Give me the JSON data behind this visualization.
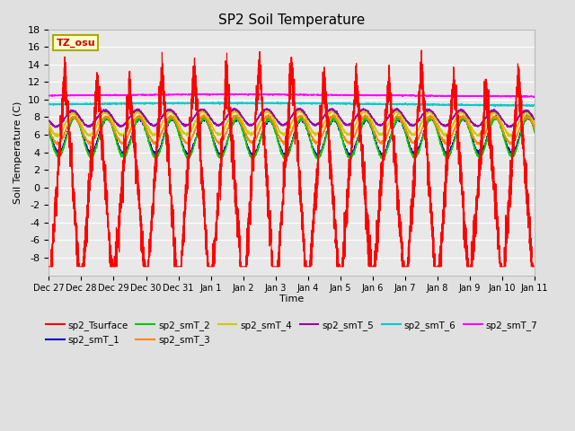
{
  "title": "SP2 Soil Temperature",
  "ylabel": "Soil Temperature (C)",
  "xlabel": "Time",
  "ylim": [
    -10,
    18
  ],
  "yticks": [
    -8,
    -6,
    -4,
    -2,
    0,
    2,
    4,
    6,
    8,
    10,
    12,
    14,
    16,
    18
  ],
  "xtick_labels": [
    "Dec 27",
    "Dec 28",
    "Dec 29",
    "Dec 30",
    "Dec 31",
    "Jan 1",
    "Jan 2",
    "Jan 3",
    "Jan 4",
    "Jan 5",
    "Jan 6",
    "Jan 7",
    "Jan 8",
    "Jan 9",
    "Jan 10",
    "Jan 11"
  ],
  "xtick_positions": [
    0,
    1,
    2,
    3,
    4,
    5,
    6,
    7,
    8,
    9,
    10,
    11,
    12,
    13,
    14,
    15
  ],
  "series_colors": {
    "sp2_Tsurface": "#ff0000",
    "sp2_smT_1": "#0000cc",
    "sp2_smT_2": "#00cc00",
    "sp2_smT_3": "#ff8800",
    "sp2_smT_4": "#cccc00",
    "sp2_smT_5": "#9900aa",
    "sp2_smT_6": "#00cccc",
    "sp2_smT_7": "#ff00ff"
  },
  "background_color": "#e0e0e0",
  "plot_bg_color": "#e8e8e8",
  "grid_color": "#ffffff",
  "annotation_text": "TZ_osu",
  "annotation_color": "#cc0000",
  "annotation_bg": "#ffffcc",
  "annotation_border": "#aaaa00",
  "days": 15,
  "n_points": 5000
}
